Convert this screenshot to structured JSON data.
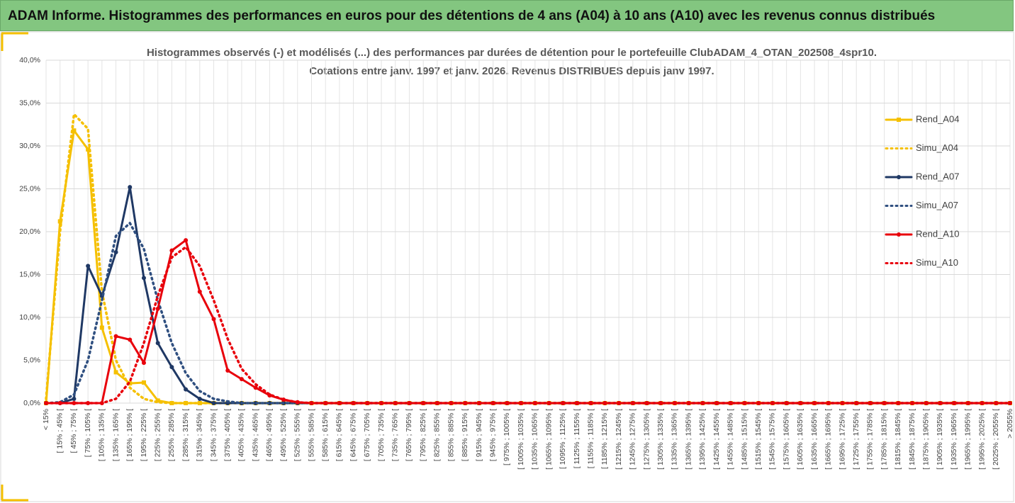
{
  "header": {
    "title": "ADAM Informe. Histogrammes des performances en euros pour des détentions de 4 ans (A04) à 10 ans (A10) avec les revenus connus distribués"
  },
  "chart_data": {
    "type": "line",
    "title": [
      "Histogrammes observés (-) et modélisés (...) des performances par durées de détention pour le portefeuille ClubADAM_4_OTAN_202508_4spr10.",
      "Cotations entre janv. 1997 et janv. 2026. Revenus DISTRIBUES depuis janv 1997."
    ],
    "categories": [
      "< 15%",
      "[ 15% ; 45% [",
      "[ 45% ; 75% [",
      "[ 75% ; 105% [",
      "[ 105% ; 135% [",
      "[ 135% ; 165% [",
      "[ 165% ; 195% [",
      "[ 195% ; 225% [",
      "[ 225% ; 255% [",
      "[ 255% ; 285% [",
      "[ 285% ; 315% [",
      "[ 315% ; 345% [",
      "[ 345% ; 375% [",
      "[ 375% ; 405% [",
      "[ 405% ; 435% [",
      "[ 435% ; 465% [",
      "[ 465% ; 495% [",
      "[ 495% ; 525% [",
      "[ 525% ; 555% [",
      "[ 555% ; 585% [",
      "[ 585% ; 615% [",
      "[ 615% ; 645% [",
      "[ 645% ; 675% [",
      "[ 675% ; 705% [",
      "[ 705% ; 735% [",
      "[ 735% ; 765% [",
      "[ 765% ; 795% [",
      "[ 795% ; 825% [",
      "[ 825% ; 855% [",
      "[ 855% ; 885% [",
      "[ 885% ; 915% [",
      "[ 915% ; 945% [",
      "[ 945% ; 975% [",
      "[ 975% ; 1005% [",
      "[ 1005% ; 1035% [",
      "[ 1035% ; 1065% [",
      "[ 1065% ; 1095% [",
      "[ 1095% ; 1125% [",
      "[ 1125% ; 1155% [",
      "[ 1155% ; 1185% [",
      "[ 1185% ; 1215% [",
      "[ 1215% ; 1245% [",
      "[ 1245% ; 1275% [",
      "[ 1275% ; 1305% [",
      "[ 1305% ; 1335% [",
      "[ 1335% ; 1365% [",
      "[ 1365% ; 1395% [",
      "[ 1395% ; 1425% [",
      "[ 1425% ; 1455% [",
      "[ 1455% ; 1485% [",
      "[ 1485% ; 1515% [",
      "[ 1515% ; 1545% [",
      "[ 1545% ; 1575% [",
      "[ 1575% ; 1605% [",
      "[ 1605% ; 1635% [",
      "[ 1635% ; 1665% [",
      "[ 1665% ; 1695% [",
      "[ 1695% ; 1725% [",
      "[ 1725% ; 1755% [",
      "[ 1755% ; 1785% [",
      "[ 1785% ; 1815% [",
      "[ 1815% ; 1845% [",
      "[ 1845% ; 1875% [",
      "[ 1875% ; 1905% [",
      "[ 1905% ; 1935% [",
      "[ 1935% ; 1965% [",
      "[ 1965% ; 1995% [",
      "[ 1995% ; 2025% [",
      "[ 2025% ; 2055% [",
      "> 2055%"
    ],
    "series": [
      {
        "name": "Rend_A04",
        "color": "#f5c000",
        "dash": false,
        "marker": "square",
        "values": [
          0,
          21.2,
          31.8,
          29.6,
          8.8,
          3.6,
          2.3,
          2.4,
          0.3,
          0,
          0,
          0,
          0,
          0,
          0,
          0,
          0,
          0,
          0,
          0,
          0,
          0,
          0,
          0,
          0,
          0,
          0,
          0,
          0,
          0,
          0,
          0,
          0,
          0,
          0,
          0,
          0,
          0,
          0,
          0,
          0,
          0,
          0,
          0,
          0,
          0,
          0,
          0,
          0,
          0,
          0,
          0,
          0,
          0,
          0,
          0,
          0,
          0,
          0,
          0,
          0,
          0,
          0,
          0,
          0,
          0,
          0,
          0,
          0,
          0
        ]
      },
      {
        "name": "Simu_A04",
        "color": "#f5c000",
        "dash": true,
        "marker": null,
        "values": [
          0.5,
          20,
          33.7,
          32,
          13,
          5,
          1.8,
          0.5,
          0.1,
          0,
          0,
          0,
          0,
          0,
          0,
          0,
          0,
          0,
          0,
          0,
          0,
          0,
          0,
          0,
          0,
          0,
          0,
          0,
          0,
          0,
          0,
          0,
          0,
          0,
          0,
          0,
          0,
          0,
          0,
          0,
          0,
          0,
          0,
          0,
          0,
          0,
          0,
          0,
          0,
          0,
          0,
          0,
          0,
          0,
          0,
          0,
          0,
          0,
          0,
          0,
          0,
          0,
          0,
          0,
          0,
          0,
          0,
          0,
          0,
          0
        ]
      },
      {
        "name": "Rend_A07",
        "color": "#1f3864",
        "dash": false,
        "marker": "circle",
        "values": [
          0,
          0,
          0.5,
          16,
          12.5,
          17.6,
          25.2,
          14.6,
          7,
          4.2,
          1.6,
          0.5,
          0,
          0,
          0,
          0,
          0,
          0,
          0,
          0,
          0,
          0,
          0,
          0,
          0,
          0,
          0,
          0,
          0,
          0,
          0,
          0,
          0,
          0,
          0,
          0,
          0,
          0,
          0,
          0,
          0,
          0,
          0,
          0,
          0,
          0,
          0,
          0,
          0,
          0,
          0,
          0,
          0,
          0,
          0,
          0,
          0,
          0,
          0,
          0,
          0,
          0,
          0,
          0,
          0,
          0,
          0,
          0,
          0,
          0
        ]
      },
      {
        "name": "Simu_A07",
        "color": "#2f4f80",
        "dash": true,
        "marker": null,
        "values": [
          0,
          0.1,
          1,
          5,
          12,
          19.5,
          21,
          18,
          12,
          7,
          3.5,
          1.4,
          0.5,
          0.2,
          0,
          0,
          0,
          0,
          0,
          0,
          0,
          0,
          0,
          0,
          0,
          0,
          0,
          0,
          0,
          0,
          0,
          0,
          0,
          0,
          0,
          0,
          0,
          0,
          0,
          0,
          0,
          0,
          0,
          0,
          0,
          0,
          0,
          0,
          0,
          0,
          0,
          0,
          0,
          0,
          0,
          0,
          0,
          0,
          0,
          0,
          0,
          0,
          0,
          0,
          0,
          0,
          0,
          0,
          0,
          0
        ]
      },
      {
        "name": "Rend_A10",
        "color": "#e8000b",
        "dash": false,
        "marker": "circle",
        "values": [
          0,
          0,
          0,
          0,
          0,
          7.8,
          7.4,
          4.7,
          11,
          17.8,
          19,
          13,
          9.8,
          3.8,
          2.8,
          1.8,
          0.9,
          0.4,
          0.1,
          0,
          0,
          0,
          0,
          0,
          0,
          0,
          0,
          0,
          0,
          0,
          0,
          0,
          0,
          0,
          0,
          0,
          0,
          0,
          0,
          0,
          0,
          0,
          0,
          0,
          0,
          0,
          0,
          0,
          0,
          0,
          0,
          0,
          0,
          0,
          0,
          0,
          0,
          0,
          0,
          0,
          0,
          0,
          0,
          0,
          0,
          0,
          0,
          0,
          0,
          0
        ]
      },
      {
        "name": "Simu_A10",
        "color": "#e8000b",
        "dash": true,
        "marker": null,
        "values": [
          0,
          0,
          0,
          0,
          0,
          0.5,
          2.5,
          7,
          12.5,
          17,
          18.2,
          16,
          12,
          7.5,
          4,
          2.2,
          1,
          0.4,
          0.1,
          0,
          0,
          0,
          0,
          0,
          0,
          0,
          0,
          0,
          0,
          0,
          0,
          0,
          0,
          0,
          0,
          0,
          0,
          0,
          0,
          0,
          0,
          0,
          0,
          0,
          0,
          0,
          0,
          0,
          0,
          0,
          0,
          0,
          0,
          0,
          0,
          0,
          0,
          0,
          0,
          0,
          0,
          0,
          0,
          0,
          0,
          0,
          0,
          0,
          0,
          0
        ]
      }
    ],
    "ylim": [
      0,
      40
    ],
    "yticks": [
      {
        "value": 0,
        "label": "0,0%"
      },
      {
        "value": 5,
        "label": "5,0%"
      },
      {
        "value": 10,
        "label": "10,0%"
      },
      {
        "value": 15,
        "label": "15,0%"
      },
      {
        "value": 20,
        "label": "20,0%"
      },
      {
        "value": 25,
        "label": "25,0%"
      },
      {
        "value": 30,
        "label": "30,0%"
      },
      {
        "value": 35,
        "label": "35,0%"
      },
      {
        "value": 40,
        "label": "40,0%"
      }
    ],
    "grid": true,
    "legend": "right"
  }
}
